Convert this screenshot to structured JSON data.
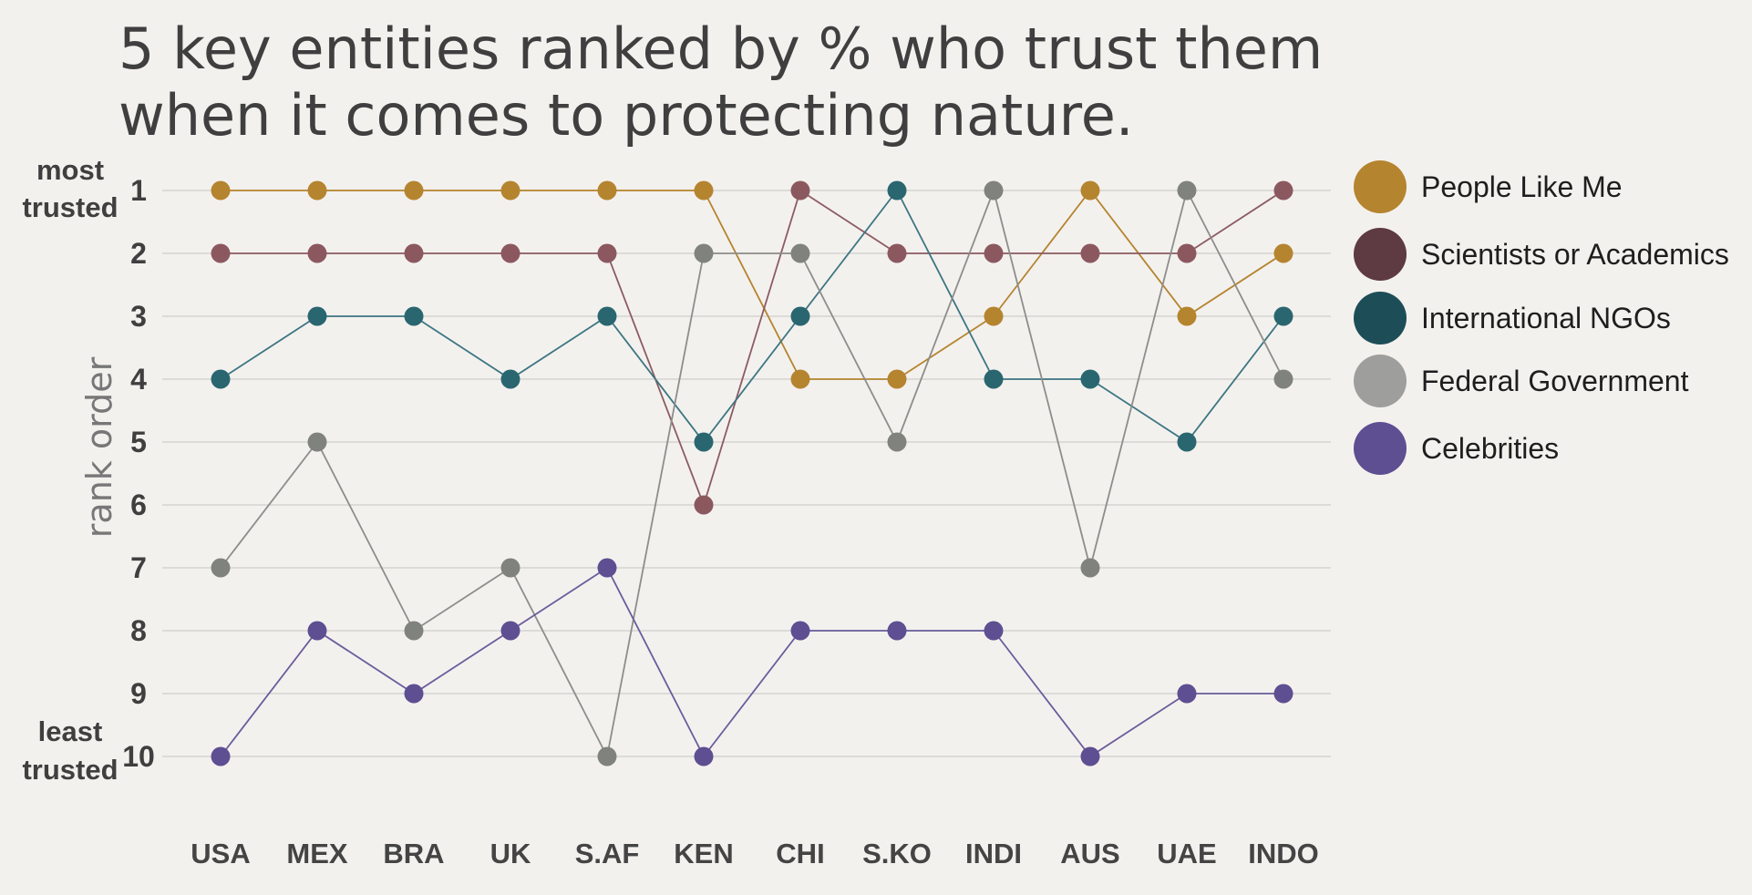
{
  "chart_data": {
    "type": "line",
    "title_lines": [
      "5 key entities ranked by % who trust them",
      "when it comes to protecting nature."
    ],
    "ylabel": "rank order",
    "y_top_label": [
      "most",
      "trusted"
    ],
    "y_bottom_label": [
      "least",
      "trusted"
    ],
    "y_ticks": [
      "1",
      "2",
      "3",
      "4",
      "5",
      "6",
      "7",
      "8",
      "9",
      "10"
    ],
    "ylim": [
      1,
      10
    ],
    "y_reversed": true,
    "grid": true,
    "legend_position": "right",
    "categories": [
      "USA",
      "MEX",
      "BRA",
      "UK",
      "S.AF",
      "KEN",
      "CHI",
      "S.KO",
      "INDI",
      "AUS",
      "UAE",
      "INDO"
    ],
    "series": [
      {
        "name": "People Like Me",
        "color": "#b5842f",
        "line_color": "#b5842f",
        "marker_color": "#b5842f",
        "values": [
          1,
          1,
          1,
          1,
          1,
          1,
          4,
          4,
          3,
          1,
          3,
          2
        ]
      },
      {
        "name": "Scientists or Academics",
        "color": "#5e3a42",
        "line_color": "#8c5b63",
        "marker_color": "#8c5860",
        "values": [
          2,
          2,
          2,
          2,
          2,
          6,
          1,
          2,
          2,
          2,
          2,
          1
        ]
      },
      {
        "name": "International NGOs",
        "color": "#1d4e58",
        "line_color": "#3c7682",
        "marker_color": "#2a6670",
        "values": [
          4,
          3,
          3,
          4,
          3,
          5,
          3,
          1,
          4,
          4,
          5,
          3
        ]
      },
      {
        "name": "Federal Government",
        "color": "#9e9e9c",
        "line_color": "#8d8d8b",
        "marker_color": "#80827e",
        "values": [
          7,
          5,
          8,
          7,
          10,
          2,
          2,
          5,
          1,
          7,
          1,
          4
        ]
      },
      {
        "name": "Celebrities",
        "color": "#5d4f91",
        "line_color": "#6a5d9c",
        "marker_color": "#5d4f91",
        "values": [
          10,
          8,
          9,
          8,
          7,
          10,
          8,
          8,
          8,
          10,
          9,
          9
        ]
      }
    ]
  }
}
